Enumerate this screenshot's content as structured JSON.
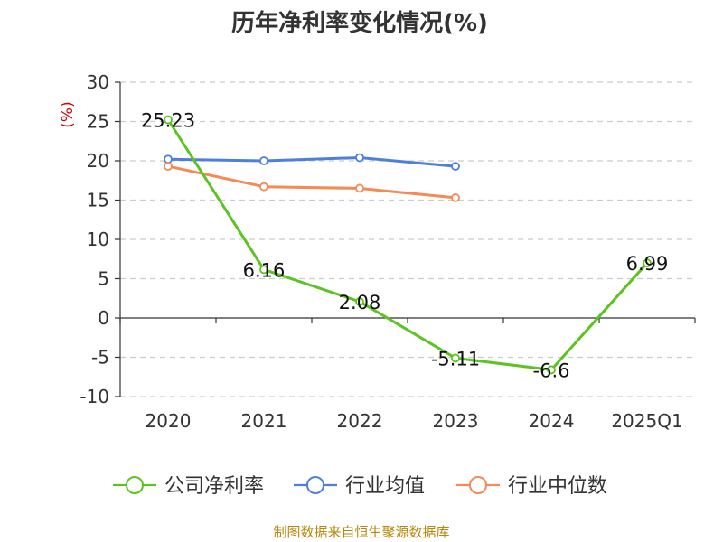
{
  "chart_data": {
    "type": "line",
    "title": "历年净利率变化情况(%)",
    "ylabel": "(%)",
    "ylim": [
      -10,
      30
    ],
    "yticks": [
      30,
      25,
      20,
      15,
      10,
      5,
      0,
      -5,
      -10
    ],
    "categories": [
      "2020",
      "2021",
      "2022",
      "2023",
      "2024",
      "2025Q1"
    ],
    "grid": true,
    "legend_position": "bottom",
    "series": [
      {
        "name": "公司净利率",
        "color": "#5cc420",
        "values": [
          25.23,
          6.16,
          2.08,
          -5.11,
          -6.6,
          6.99
        ],
        "labels": [
          "25.23",
          "6.16",
          "2.08",
          "-5.11",
          "-6.6",
          "6.99"
        ]
      },
      {
        "name": "行业均值",
        "color": "#4f7fdc",
        "values": [
          20.2,
          20.0,
          20.4,
          19.3,
          null,
          null
        ]
      },
      {
        "name": "行业中位数",
        "color": "#f68a55",
        "values": [
          19.3,
          16.7,
          16.5,
          15.3,
          null,
          null
        ]
      }
    ],
    "source": "制图数据来自恒生聚源数据库"
  }
}
